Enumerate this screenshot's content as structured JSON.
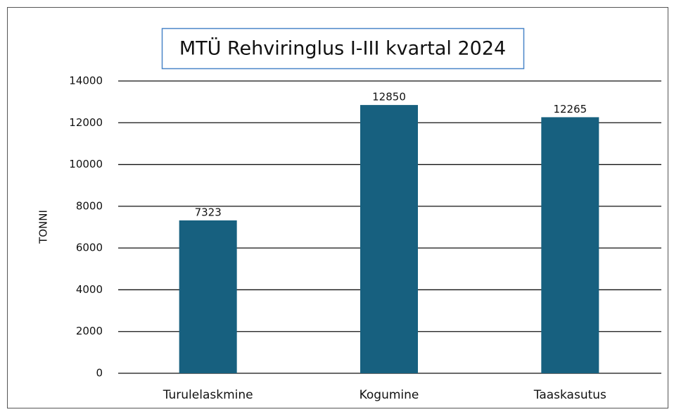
{
  "chart_data": {
    "type": "bar",
    "title": "MTÜ Rehviringlus I-III kvartal 2024",
    "y_label": "TONNI",
    "categories": [
      "Turulelaskmine",
      "Kogumine",
      "Taaskasutus"
    ],
    "values": [
      7323,
      12850,
      12265
    ],
    "color": "#17607f",
    "ylim": [
      0,
      14000
    ],
    "yticks": [
      0,
      2000,
      4000,
      6000,
      8000,
      10000,
      12000,
      14000
    ],
    "grid": true
  }
}
